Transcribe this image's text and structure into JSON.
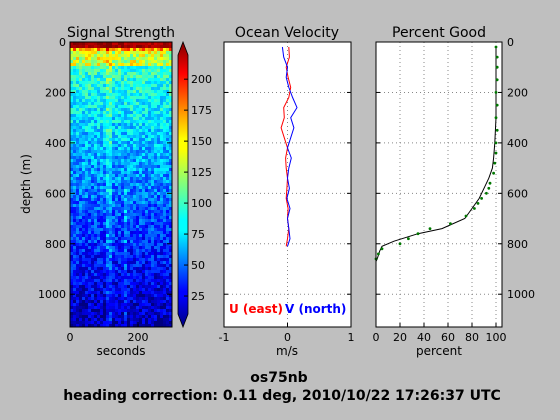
{
  "figure": {
    "footer_line1": "os75nb",
    "footer_line2": "heading correction:  0.11 deg, 2010/10/22 17:26:37 UTC"
  },
  "chart_data": [
    {
      "type": "heatmap",
      "title": "Signal Strength",
      "ylabel": "depth (m)",
      "xlabel": "seconds",
      "xlim": [
        0,
        300
      ],
      "ylim": [
        1130,
        0
      ],
      "xticks": [
        0,
        200
      ],
      "yticks": [
        0,
        200,
        400,
        600,
        800,
        1000
      ],
      "colorbar": {
        "range": [
          0,
          230
        ],
        "ticks": [
          25,
          50,
          75,
          100,
          125,
          150,
          175,
          200
        ],
        "colormap": "jet"
      }
    },
    {
      "type": "line",
      "title": "Ocean Velocity",
      "xlabel": "m/s",
      "xlim": [
        -1,
        1
      ],
      "ylim": [
        1130,
        0
      ],
      "xticks": [
        -1,
        0,
        1
      ],
      "grid": true,
      "series": [
        {
          "name": "U (east)",
          "color": "#ff0000",
          "depth": [
            20,
            60,
            100,
            140,
            180,
            220,
            260,
            300,
            340,
            380,
            420,
            460,
            500,
            540,
            580,
            620,
            660,
            700,
            740,
            780,
            810
          ],
          "values": [
            0.02,
            0.03,
            -0.02,
            0.01,
            0.05,
            0.02,
            -0.06,
            -0.05,
            -0.1,
            -0.05,
            0.0,
            -0.03,
            -0.02,
            0.0,
            -0.01,
            -0.02,
            0.01,
            0.0,
            0.02,
            0.0,
            -0.02
          ]
        },
        {
          "name": "V (north)",
          "color": "#0000ff",
          "depth": [
            20,
            60,
            100,
            140,
            180,
            220,
            260,
            300,
            340,
            380,
            420,
            460,
            500,
            540,
            580,
            620,
            660,
            700,
            740,
            780,
            810
          ],
          "values": [
            -0.08,
            -0.06,
            0.0,
            -0.02,
            0.02,
            0.08,
            0.15,
            0.05,
            0.1,
            0.05,
            0.0,
            0.06,
            0.02,
            0.0,
            0.03,
            -0.01,
            0.04,
            0.0,
            0.02,
            0.04,
            0.0
          ]
        }
      ]
    },
    {
      "type": "line",
      "title": "Percent Good",
      "xlabel": "percent",
      "xlim": [
        0,
        105
      ],
      "ylim": [
        1130,
        0
      ],
      "xticks": [
        0,
        20,
        40,
        60,
        80,
        100
      ],
      "yticks": [
        0,
        200,
        400,
        600,
        800,
        1000
      ],
      "grid": true,
      "series": [
        {
          "color": "#000000",
          "depth": [
            20,
            100,
            200,
            300,
            400,
            460,
            500,
            540,
            580,
            620,
            660,
            700,
            740,
            760,
            790,
            810,
            830,
            860,
            870
          ],
          "values": [
            100,
            100,
            100,
            100,
            99,
            98,
            97,
            94,
            90,
            86,
            80,
            74,
            55,
            35,
            15,
            5,
            3,
            1,
            0
          ]
        },
        {
          "style": "dots",
          "color": "#007700",
          "depth": [
            20,
            60,
            100,
            150,
            200,
            250,
            300,
            350,
            400,
            440,
            480,
            520,
            560,
            580,
            600,
            620,
            640,
            660,
            690,
            720,
            740,
            760,
            780,
            800,
            820,
            840,
            860
          ],
          "values": [
            100,
            101,
            101,
            101,
            100,
            101,
            100,
            101,
            100,
            100,
            99,
            98,
            95,
            94,
            92,
            88,
            85,
            82,
            75,
            62,
            45,
            35,
            27,
            20,
            5,
            2,
            0
          ]
        }
      ]
    }
  ]
}
